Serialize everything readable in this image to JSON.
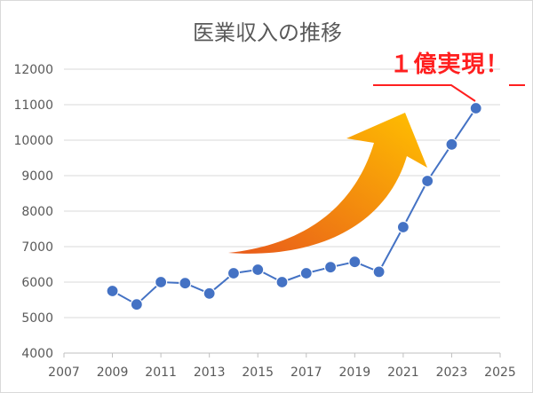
{
  "chart_data": {
    "type": "line",
    "title": "医業収入の推移",
    "xlabel": "",
    "ylabel": "",
    "xlim": [
      2007,
      2025
    ],
    "ylim": [
      4000,
      12000
    ],
    "x_ticks": [
      2007,
      2009,
      2011,
      2013,
      2015,
      2017,
      2019,
      2021,
      2023,
      2025
    ],
    "y_ticks": [
      4000,
      5000,
      6000,
      7000,
      8000,
      9000,
      10000,
      11000,
      12000
    ],
    "grid": "horizontal",
    "legend": "none",
    "series": [
      {
        "x": [
          2009,
          2010,
          2011,
          2012,
          2013,
          2014,
          2015,
          2016,
          2017,
          2018,
          2019,
          2020,
          2021,
          2022,
          2023,
          2024
        ],
        "values": [
          5750,
          5370,
          6000,
          5970,
          5680,
          6250,
          6350,
          6000,
          6250,
          6420,
          6570,
          6290,
          7550,
          8850,
          9880,
          10900
        ],
        "color": "#4472c4",
        "marker_color": "#4472c4"
      }
    ],
    "annotations": [
      {
        "text": "１億実現！",
        "color": "#ff1f1f"
      }
    ],
    "arrow": {
      "color_start": "#e8591b",
      "color_end": "#ffc000"
    }
  }
}
